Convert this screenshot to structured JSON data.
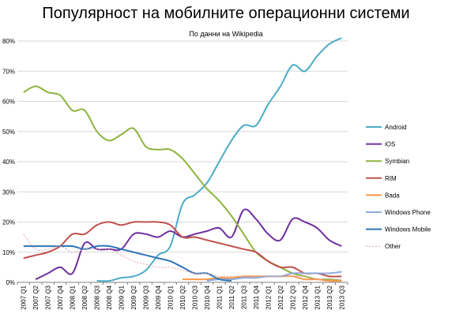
{
  "chart_data": {
    "type": "line",
    "title": "Популярност на мобилните операционни системи",
    "subtitle": "По данни на  Wikipedia",
    "ylim": [
      0,
      80
    ],
    "y_ticks": [
      0,
      10,
      20,
      30,
      40,
      50,
      60,
      70,
      80
    ],
    "y_tick_format": "percent",
    "grid": "horizontal",
    "legend_position": "right",
    "x": [
      "2007 Q1",
      "2007 Q2",
      "2007 Q3",
      "2007 Q4",
      "2008 Q1",
      "2008 Q2",
      "2008 Q3",
      "2008 Q4",
      "2009 Q1",
      "2009 Q2",
      "2009 Q3",
      "2009 Q4",
      "2010 Q1",
      "2010 Q2",
      "2010 Q3",
      "2010 Q4",
      "2011 Q1",
      "2011 Q2",
      "2011 Q3",
      "2011 Q4",
      "2012 Q1",
      "2012 Q2",
      "2012 Q3",
      "2012 Q4",
      "2013 Q1",
      "2013 Q2",
      "2013 Q3"
    ],
    "series": [
      {
        "name": "Android",
        "color": "#4BACC6",
        "dash": "",
        "values": [
          null,
          null,
          null,
          null,
          null,
          null,
          0.5,
          0.5,
          1.5,
          2,
          4,
          9,
          12,
          26,
          29,
          33,
          40,
          47,
          52,
          52,
          59,
          65,
          72,
          70,
          75,
          79,
          81
        ]
      },
      {
        "name": "iOS",
        "color": "#7030A0",
        "dash": "",
        "values": [
          null,
          1,
          3,
          5,
          3,
          13,
          11,
          11,
          11,
          16,
          16,
          15,
          17,
          15,
          16,
          17,
          18,
          15,
          24,
          21,
          16,
          14,
          21,
          20,
          18,
          14,
          12
        ]
      },
      {
        "name": "Symbian",
        "color": "#8DB43E",
        "dash": "",
        "values": [
          63,
          65,
          63,
          62,
          57,
          57,
          50,
          47,
          49,
          51,
          45,
          44,
          44,
          41,
          36,
          31,
          27,
          22,
          16,
          10,
          7,
          5,
          3,
          2,
          1,
          1,
          0.5
        ]
      },
      {
        "name": "RIM",
        "color": "#C0504D",
        "dash": "",
        "values": [
          8,
          9,
          10,
          12,
          16,
          16,
          19,
          20,
          19,
          20,
          20,
          20,
          19,
          15,
          15,
          14,
          13,
          12,
          11,
          10,
          7,
          5,
          5,
          3,
          3,
          2,
          2
        ]
      },
      {
        "name": "Bada",
        "color": "#F79646",
        "dash": "",
        "values": [
          null,
          null,
          null,
          null,
          null,
          null,
          null,
          null,
          null,
          null,
          null,
          null,
          null,
          1,
          1,
          1,
          1.5,
          1.5,
          2,
          2,
          2,
          2,
          2,
          1,
          1,
          0.5,
          0.5
        ]
      },
      {
        "name": "Windows Phone",
        "color": "#8EA9DB",
        "dash": "",
        "values": [
          null,
          null,
          null,
          null,
          null,
          null,
          null,
          null,
          null,
          null,
          null,
          null,
          null,
          null,
          null,
          0.5,
          1,
          1,
          1.5,
          1.5,
          2,
          2,
          3,
          3,
          3,
          3,
          3.5
        ]
      },
      {
        "name": "Windows Mobile",
        "color": "#2E75B6",
        "dash": "",
        "values": [
          12,
          12,
          12,
          12,
          12,
          11,
          12,
          12,
          11,
          10,
          9,
          8,
          7,
          5,
          3,
          3,
          1,
          0.5,
          null,
          null,
          null,
          null,
          null,
          null,
          null,
          null,
          null
        ]
      },
      {
        "name": "Other",
        "color": "#E6A0A0",
        "dash": "2,2",
        "values": [
          16,
          11,
          11,
          12,
          10,
          11,
          11,
          11,
          9,
          7,
          6,
          5,
          5,
          4,
          3,
          3,
          2,
          2,
          2,
          2,
          2,
          2,
          2,
          2,
          1,
          1,
          1
        ]
      }
    ]
  }
}
